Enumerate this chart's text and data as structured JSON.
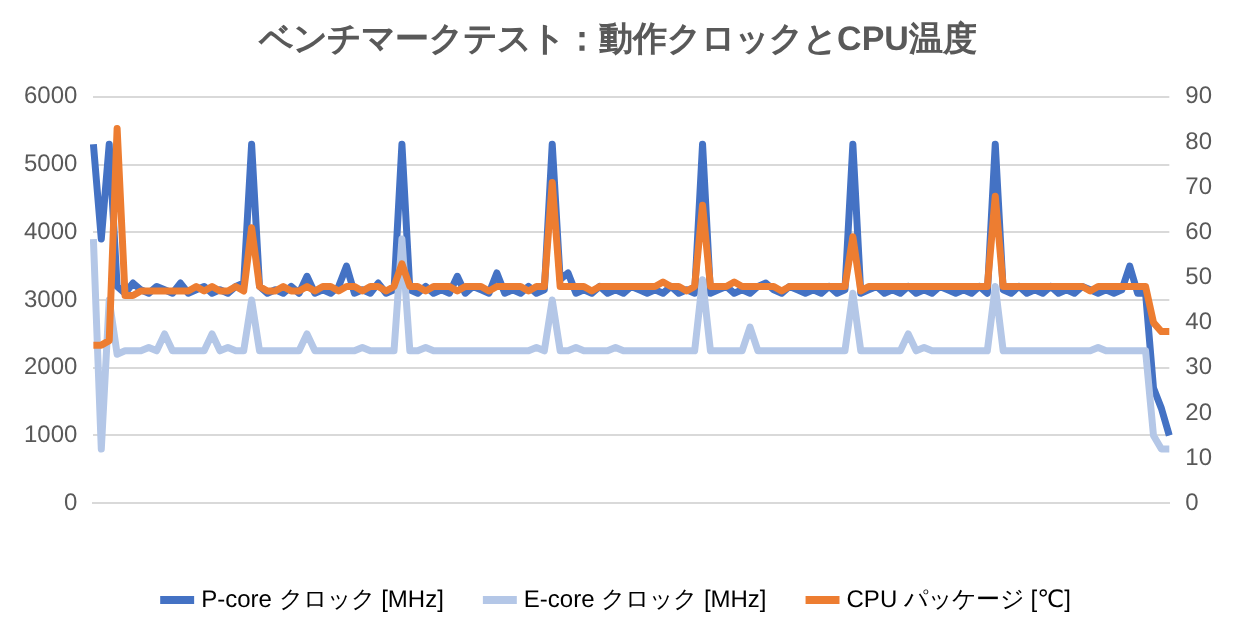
{
  "chart_data": {
    "type": "line",
    "title": "ベンチマークテスト：動作クロックとCPU温度",
    "categories": [
      null,
      null,
      null,
      null,
      null,
      null,
      null,
      null,
      null,
      null,
      null,
      null,
      null,
      null,
      null,
      null,
      null,
      null,
      null,
      null,
      null,
      null,
      null,
      null,
      null,
      null,
      null,
      null,
      null,
      null,
      null,
      null,
      null,
      null,
      null,
      null,
      null,
      null,
      null,
      null,
      null,
      null,
      null,
      null,
      null,
      null,
      null,
      null,
      null,
      null,
      null,
      null,
      null,
      null,
      null,
      null,
      null,
      null,
      null,
      null,
      null,
      null,
      null,
      null,
      null,
      null,
      null,
      null,
      null,
      null,
      null,
      null,
      null,
      null,
      null,
      null,
      null,
      null,
      null,
      null,
      null,
      null,
      null,
      null,
      null,
      null,
      null,
      null,
      null,
      null,
      null,
      null,
      null,
      null,
      null,
      null,
      null,
      null,
      null,
      null,
      null,
      null,
      null,
      null,
      null,
      null,
      null,
      null,
      null,
      null,
      null,
      null,
      null,
      null,
      null,
      null,
      null,
      null,
      null,
      null,
      null,
      null,
      null,
      null,
      null,
      null,
      null,
      null,
      null,
      null,
      null,
      null,
      null,
      null,
      null,
      null,
      null
    ],
    "series": [
      {
        "name": "P-core クロック [MHz]",
        "color": "#4472c4",
        "values": [
          5300,
          3900,
          5300,
          3200,
          3100,
          3250,
          3150,
          3100,
          3200,
          3150,
          3100,
          3250,
          3100,
          3150,
          3200,
          3100,
          3150,
          3100,
          3200,
          3250,
          5300,
          3200,
          3100,
          3150,
          3100,
          3200,
          3100,
          3350,
          3100,
          3150,
          3100,
          3200,
          3500,
          3100,
          3150,
          3100,
          3250,
          3100,
          3150,
          5300,
          3150,
          3100,
          3200,
          3100,
          3150,
          3100,
          3350,
          3100,
          3200,
          3150,
          3100,
          3400,
          3100,
          3150,
          3100,
          3200,
          3100,
          3150,
          5300,
          3300,
          3400,
          3100,
          3150,
          3100,
          3200,
          3100,
          3150,
          3100,
          3200,
          3150,
          3100,
          3150,
          3100,
          3200,
          3100,
          3150,
          3100,
          5300,
          3100,
          3150,
          3200,
          3100,
          3150,
          3100,
          3200,
          3250,
          3150,
          3100,
          3200,
          3150,
          3100,
          3150,
          3100,
          3200,
          3100,
          3150,
          5300,
          3100,
          3150,
          3200,
          3100,
          3150,
          3100,
          3200,
          3100,
          3150,
          3100,
          3200,
          3150,
          3100,
          3150,
          3100,
          3200,
          3100,
          5300,
          3150,
          3100,
          3200,
          3100,
          3150,
          3100,
          3200,
          3100,
          3150,
          3100,
          3200,
          3150,
          3100,
          3150,
          3100,
          3150,
          3500,
          3100,
          3100,
          1700,
          1400,
          1000
        ]
      },
      {
        "name": "E-core クロック [MHz]",
        "color": "#b4c7e7",
        "values": [
          3900,
          800,
          3000,
          2200,
          2250,
          2250,
          2250,
          2300,
          2250,
          2500,
          2250,
          2250,
          2250,
          2250,
          2250,
          2500,
          2250,
          2300,
          2250,
          2250,
          3000,
          2250,
          2250,
          2250,
          2250,
          2250,
          2250,
          2500,
          2250,
          2250,
          2250,
          2250,
          2250,
          2250,
          2300,
          2250,
          2250,
          2250,
          2250,
          3900,
          2250,
          2250,
          2300,
          2250,
          2250,
          2250,
          2250,
          2250,
          2250,
          2250,
          2250,
          2250,
          2250,
          2250,
          2250,
          2250,
          2300,
          2250,
          3000,
          2250,
          2250,
          2300,
          2250,
          2250,
          2250,
          2250,
          2300,
          2250,
          2250,
          2250,
          2250,
          2250,
          2250,
          2250,
          2250,
          2250,
          2250,
          3300,
          2250,
          2250,
          2250,
          2250,
          2250,
          2600,
          2250,
          2250,
          2250,
          2250,
          2250,
          2250,
          2250,
          2250,
          2250,
          2250,
          2250,
          2250,
          3100,
          2250,
          2250,
          2250,
          2250,
          2250,
          2250,
          2500,
          2250,
          2300,
          2250,
          2250,
          2250,
          2250,
          2250,
          2250,
          2250,
          2250,
          3200,
          2250,
          2250,
          2250,
          2250,
          2250,
          2250,
          2250,
          2250,
          2250,
          2250,
          2250,
          2250,
          2300,
          2250,
          2250,
          2250,
          2250,
          2250,
          2250,
          1000,
          800,
          800
        ]
      },
      {
        "name": "CPU パッケージ [℃]",
        "color": "#ed7d31",
        "axis": "y2",
        "values": [
          35,
          35,
          36,
          83,
          46,
          46,
          47,
          47,
          47,
          47,
          47,
          47,
          47,
          48,
          47,
          48,
          47,
          47,
          48,
          47,
          61,
          48,
          47,
          47,
          48,
          47,
          47,
          48,
          47,
          48,
          48,
          47,
          48,
          48,
          47,
          48,
          48,
          47,
          48,
          53,
          48,
          48,
          47,
          48,
          48,
          48,
          47,
          48,
          48,
          48,
          47,
          48,
          48,
          48,
          48,
          47,
          48,
          48,
          71,
          48,
          48,
          48,
          48,
          47,
          48,
          48,
          48,
          48,
          48,
          48,
          48,
          48,
          49,
          48,
          48,
          47,
          48,
          66,
          48,
          48,
          48,
          49,
          48,
          48,
          48,
          48,
          48,
          47,
          48,
          48,
          48,
          48,
          48,
          48,
          48,
          48,
          59,
          47,
          48,
          48,
          48,
          48,
          48,
          48,
          48,
          48,
          48,
          48,
          48,
          48,
          48,
          48,
          48,
          48,
          68,
          48,
          48,
          48,
          48,
          48,
          48,
          48,
          48,
          48,
          48,
          48,
          47,
          48,
          48,
          48,
          48,
          48,
          48,
          48,
          40,
          38,
          38
        ]
      }
    ],
    "ylim": [
      0,
      6000
    ],
    "yticks": [
      0,
      1000,
      2000,
      3000,
      4000,
      5000,
      6000
    ],
    "y2lim": [
      0,
      90
    ],
    "y2ticks": [
      0,
      10,
      20,
      30,
      40,
      50,
      60,
      70,
      80,
      90
    ],
    "grid": "y",
    "legend": "bottom",
    "marker": "none"
  }
}
